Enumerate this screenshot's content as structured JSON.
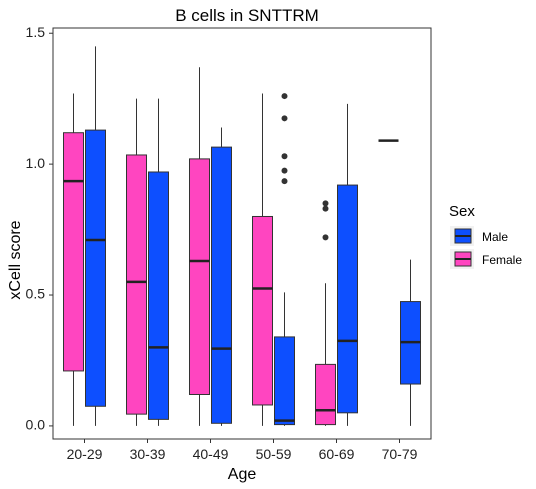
{
  "chart_data": {
    "type": "boxplot",
    "title": "B cells in SNTTRM",
    "xlabel": "Age",
    "ylabel": "xCell score",
    "categories": [
      "20-29",
      "30-39",
      "40-49",
      "50-59",
      "60-69",
      "70-79"
    ],
    "y_ticks": [
      "0.0",
      "0.5",
      "1.0",
      "1.5"
    ],
    "ylim": [
      -0.05,
      1.52
    ],
    "grid": false,
    "legend": {
      "title": "Sex",
      "position": "right"
    },
    "series": [
      {
        "name": "Female",
        "color": "#FF45C0",
        "boxes": [
          {
            "category": "20-29",
            "min": 0.0,
            "q1": 0.21,
            "median": 0.935,
            "q3": 1.12,
            "max": 1.27,
            "outliers": []
          },
          {
            "category": "30-39",
            "min": 0.0,
            "q1": 0.045,
            "median": 0.55,
            "q3": 1.035,
            "max": 1.25,
            "outliers": []
          },
          {
            "category": "40-49",
            "min": 0.0,
            "q1": 0.12,
            "median": 0.63,
            "q3": 1.02,
            "max": 1.37,
            "outliers": []
          },
          {
            "category": "50-59",
            "min": 0.0,
            "q1": 0.08,
            "median": 0.525,
            "q3": 0.8,
            "max": 1.27,
            "outliers": []
          },
          {
            "category": "60-69",
            "min": 0.0,
            "q1": 0.005,
            "median": 0.06,
            "q3": 0.235,
            "max": 0.545,
            "outliers": [
              0.72,
              0.83,
              0.85
            ]
          }
        ]
      },
      {
        "name": "Male",
        "color": "#0D4FFF",
        "boxes": [
          {
            "category": "20-29",
            "min": 0.0,
            "q1": 0.075,
            "median": 0.71,
            "q3": 1.13,
            "max": 1.45,
            "outliers": []
          },
          {
            "category": "30-39",
            "min": 0.0,
            "q1": 0.025,
            "median": 0.3,
            "q3": 0.97,
            "max": 1.25,
            "outliers": []
          },
          {
            "category": "40-49",
            "min": 0.0,
            "q1": 0.01,
            "median": 0.295,
            "q3": 1.065,
            "max": 1.14,
            "outliers": []
          },
          {
            "category": "50-59",
            "min": 0.0,
            "q1": 0.005,
            "median": 0.02,
            "q3": 0.34,
            "max": 0.51,
            "outliers": [
              0.935,
              0.975,
              1.03,
              1.175,
              1.26
            ]
          },
          {
            "category": "60-69",
            "min": 0.0,
            "q1": 0.05,
            "median": 0.325,
            "q3": 0.92,
            "max": 1.23,
            "outliers": []
          },
          {
            "category": "70-79",
            "min": 0.0,
            "q1": 0.16,
            "median": 0.32,
            "q3": 0.475,
            "max": 0.635,
            "outliers": []
          }
        ]
      },
      {
        "name": "Female",
        "single_value": true,
        "color": "#FF45C0",
        "boxes": [
          {
            "category": "70-79",
            "min": 1.09,
            "q1": 1.09,
            "median": 1.09,
            "q3": 1.09,
            "max": 1.09,
            "outliers": []
          }
        ]
      }
    ]
  },
  "legend_items": [
    {
      "label": "Male",
      "color": "#0D4FFF"
    },
    {
      "label": "Female",
      "color": "#FF45C0"
    }
  ]
}
